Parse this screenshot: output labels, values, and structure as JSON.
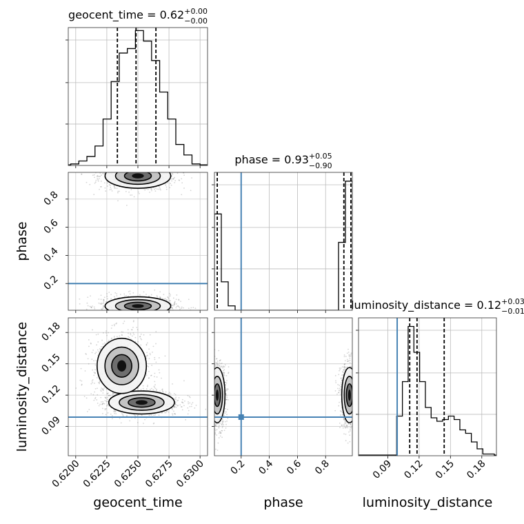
{
  "chart_data": {
    "type": "corner",
    "parameters": [
      "geocent_time",
      "phase",
      "luminosity_distance"
    ],
    "injection_color": "#4682b4",
    "grid": true,
    "panels": [
      {
        "id": "hist-geocent_time",
        "type": "histogram",
        "param": "geocent_time",
        "title": {
          "name": "geocent_time",
          "value": "0.62",
          "plus": "+0.00",
          "minus": "−0.00"
        },
        "xlim": [
          0.6194,
          0.6306
        ],
        "bin_edges": [
          0.6196,
          0.62025,
          0.6209,
          0.62155,
          0.6222,
          0.62285,
          0.6235,
          0.62415,
          0.6248,
          0.62545,
          0.6261,
          0.62675,
          0.6274,
          0.62805,
          0.6287,
          0.62935,
          0.63
        ],
        "counts": [
          1,
          3,
          6,
          13,
          31,
          56,
          75,
          78,
          90,
          83,
          70,
          49,
          31,
          14,
          7,
          1
        ],
        "quantiles": [
          0.62335,
          0.62485,
          0.62645
        ],
        "injection": null,
        "ymax": 92
      },
      {
        "id": "hist-phase",
        "type": "histogram",
        "param": "phase",
        "title": {
          "name": "phase",
          "value": "0.93",
          "plus": "+0.05",
          "minus": "−0.90"
        },
        "xlim": [
          0.01,
          0.99
        ],
        "bin_edges": [
          0.01,
          0.059,
          0.108,
          0.157,
          0.206,
          0.255,
          0.304,
          0.353,
          0.402,
          0.451,
          0.5,
          0.549,
          0.598,
          0.647,
          0.696,
          0.745,
          0.794,
          0.843,
          0.892,
          0.941,
          0.99
        ],
        "counts": [
          44,
          13,
          2,
          0,
          0,
          0,
          0,
          0,
          0,
          0,
          0,
          0,
          0,
          0,
          0,
          0,
          0,
          0,
          31,
          59
        ],
        "quantiles": [
          0.03,
          0.93,
          0.98
        ],
        "injection": 0.2,
        "ymax": 63
      },
      {
        "id": "hist-luminosity_distance",
        "type": "histogram",
        "param": "luminosity_distance",
        "title": {
          "name": "luminosity_distance",
          "value": "0.12",
          "plus": "+0.03",
          "minus": "−0.01"
        },
        "xlim": [
          0.062,
          0.194
        ],
        "bin_edges": [
          0.0985,
          0.104,
          0.1095,
          0.115,
          0.1205,
          0.126,
          0.1315,
          0.137,
          0.1425,
          0.148,
          0.1535,
          0.159,
          0.1645,
          0.17,
          0.1755,
          0.181,
          0.1865,
          0.192
        ],
        "counts": [
          23,
          43,
          75,
          60,
          43,
          28,
          22,
          20,
          21,
          23,
          21,
          15,
          13,
          8,
          4,
          1,
          1
        ],
        "quantiles": [
          0.111,
          0.118,
          0.144
        ],
        "injection": 0.099,
        "ymax": 80
      },
      {
        "id": "scatter-geocent_time-phase",
        "type": "density",
        "x_param": "geocent_time",
        "y_param": "phase",
        "xlim": [
          0.6194,
          0.6306
        ],
        "ylim": [
          0.01,
          0.99
        ],
        "modes": [
          {
            "x": 0.625,
            "y": 0.965,
            "sx": 0.0012,
            "sy": 0.04
          },
          {
            "x": 0.625,
            "y": 0.04,
            "sx": 0.0012,
            "sy": 0.03
          }
        ],
        "injection": {
          "x": null,
          "y": 0.2
        }
      },
      {
        "id": "scatter-geocent_time-luminosity_distance",
        "type": "density",
        "x_param": "geocent_time",
        "y_param": "luminosity_distance",
        "xlim": [
          0.6194,
          0.6306
        ],
        "ylim": [
          0.062,
          0.194
        ],
        "modes": [
          {
            "x": 0.6253,
            "y": 0.113,
            "sx": 0.0012,
            "sy": 0.005
          },
          {
            "x": 0.6237,
            "y": 0.148,
            "sx": 0.0009,
            "sy": 0.012
          }
        ],
        "injection": {
          "x": null,
          "y": 0.099
        }
      },
      {
        "id": "scatter-phase-luminosity_distance",
        "type": "density",
        "x_param": "phase",
        "y_param": "luminosity_distance",
        "xlim": [
          0.01,
          0.99
        ],
        "ylim": [
          0.062,
          0.194
        ],
        "modes": [
          {
            "x": 0.03,
            "y": 0.12,
            "sx": 0.025,
            "sy": 0.012
          },
          {
            "x": 0.97,
            "y": 0.12,
            "sx": 0.025,
            "sy": 0.012
          }
        ],
        "injection": {
          "x": 0.2,
          "y": 0.099
        }
      }
    ],
    "ticks": {
      "geocent_time": {
        "values": [
          0.62,
          0.6225,
          0.625,
          0.6275,
          0.63
        ],
        "labels": [
          "0.6200",
          "0.6225",
          "0.6250",
          "0.6275",
          "0.6300"
        ]
      },
      "phase": {
        "values": [
          0.2,
          0.4,
          0.6,
          0.8
        ],
        "labels": [
          "0.2",
          "0.4",
          "0.6",
          "0.8"
        ]
      },
      "luminosity_distance": {
        "values": [
          0.09,
          0.12,
          0.15,
          0.18
        ],
        "labels": [
          "0.09",
          "0.12",
          "0.15",
          "0.18"
        ]
      }
    },
    "axis_labels": {
      "x": [
        "geocent_time",
        "phase",
        "luminosity_distance"
      ],
      "y": [
        "phase",
        "luminosity_distance"
      ]
    }
  }
}
